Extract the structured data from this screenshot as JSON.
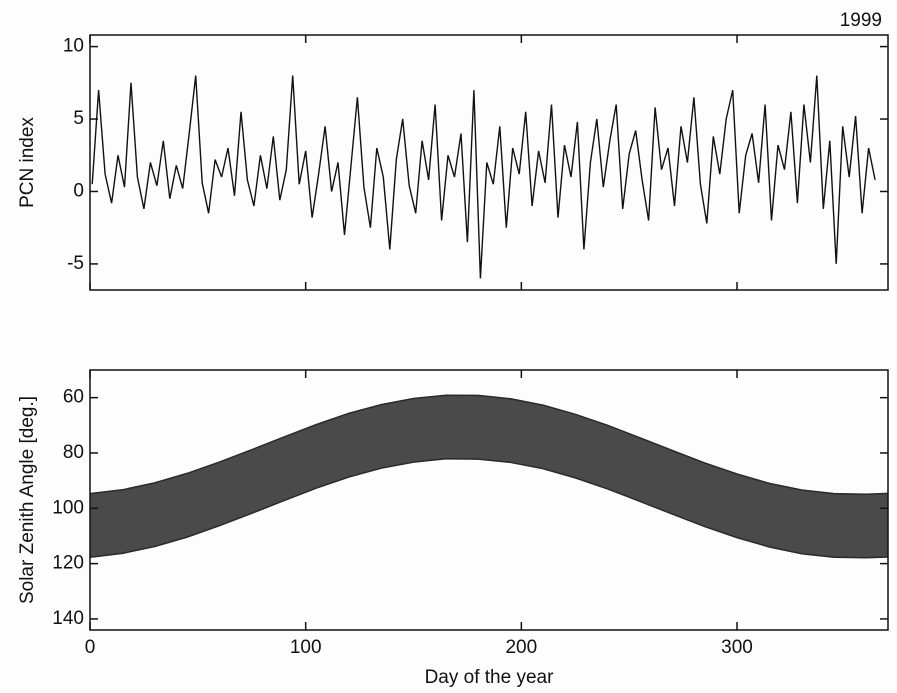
{
  "chart_data": [
    {
      "type": "line",
      "annotation": "1999",
      "y_label": "PCN index",
      "xlim": [
        0,
        370
      ],
      "xticks": [
        0,
        100,
        200,
        300
      ],
      "ylim": [
        -6.8,
        10.8
      ],
      "yticks": [
        -5,
        0,
        5,
        10
      ],
      "x": [
        1,
        4,
        7,
        10,
        13,
        16,
        19,
        22,
        25,
        28,
        31,
        34,
        37,
        40,
        43,
        46,
        49,
        52,
        55,
        58,
        61,
        64,
        67,
        70,
        73,
        76,
        79,
        82,
        85,
        88,
        91,
        94,
        97,
        100,
        103,
        106,
        109,
        112,
        115,
        118,
        121,
        124,
        127,
        130,
        133,
        136,
        139,
        142,
        145,
        148,
        151,
        154,
        157,
        160,
        163,
        166,
        169,
        172,
        175,
        178,
        181,
        184,
        187,
        190,
        193,
        196,
        199,
        202,
        205,
        208,
        211,
        214,
        217,
        220,
        223,
        226,
        229,
        232,
        235,
        238,
        241,
        244,
        247,
        250,
        253,
        256,
        259,
        262,
        265,
        268,
        271,
        274,
        277,
        280,
        283,
        286,
        289,
        292,
        295,
        298,
        301,
        304,
        307,
        310,
        313,
        316,
        319,
        322,
        325,
        328,
        331,
        334,
        337,
        340,
        343,
        346,
        349,
        352,
        355,
        358,
        361,
        364
      ],
      "series": [
        {
          "color": "#111111",
          "values": [
            0.5,
            7.0,
            1.2,
            -0.8,
            2.5,
            0.3,
            7.5,
            1.0,
            -1.2,
            2.0,
            0.4,
            3.5,
            -0.5,
            1.8,
            0.2,
            4.0,
            8.0,
            0.6,
            -1.5,
            2.2,
            1.0,
            3.0,
            -0.3,
            5.5,
            0.8,
            -1.0,
            2.5,
            0.2,
            3.8,
            -0.6,
            1.5,
            8.0,
            0.5,
            2.8,
            -1.8,
            1.2,
            4.5,
            0.0,
            2.0,
            -3.0,
            1.8,
            6.5,
            0.3,
            -2.5,
            3.0,
            1.0,
            -4.0,
            2.2,
            5.0,
            0.4,
            -1.5,
            3.5,
            0.8,
            6.0,
            -2.0,
            2.5,
            1.0,
            4.0,
            -3.5,
            7.0,
            -6.0,
            2.0,
            0.5,
            4.5,
            -2.5,
            3.0,
            1.2,
            5.5,
            -1.0,
            2.8,
            0.6,
            6.0,
            -1.8,
            3.2,
            1.0,
            4.8,
            -4.0,
            2.0,
            5.0,
            0.3,
            3.5,
            6.0,
            -1.2,
            2.6,
            4.2,
            0.8,
            -2.0,
            5.8,
            1.5,
            3.0,
            -1.0,
            4.5,
            2.0,
            6.5,
            0.5,
            -2.2,
            3.8,
            1.2,
            5.0,
            7.0,
            -1.5,
            2.5,
            4.0,
            0.6,
            6.0,
            -2.0,
            3.2,
            1.5,
            5.5,
            -0.8,
            6.0,
            2.0,
            8.0,
            -1.2,
            3.5,
            -5.0,
            4.5,
            1.0,
            5.2,
            -1.5,
            3.0,
            0.8
          ]
        }
      ]
    },
    {
      "type": "band",
      "y_label": "Solar Zenith Angle [deg.]",
      "x_label": "Day of the year",
      "xlim": [
        0,
        370
      ],
      "xticks": [
        0,
        100,
        200,
        300
      ],
      "ylim": [
        50,
        144
      ],
      "y_inverted": true,
      "yticks": [
        60,
        80,
        100,
        120,
        140
      ],
      "x": [
        0,
        15,
        30,
        45,
        60,
        75,
        90,
        105,
        120,
        135,
        150,
        165,
        180,
        195,
        210,
        225,
        240,
        255,
        270,
        285,
        300,
        315,
        330,
        345,
        360,
        370
      ],
      "series": [
        {
          "color": "#2a2a2a",
          "values": [
            94.7,
            93.3,
            90.8,
            87.4,
            83.3,
            78.8,
            74.2,
            69.7,
            65.7,
            62.5,
            60.3,
            59.1,
            59.2,
            60.4,
            62.7,
            66.0,
            70.0,
            74.5,
            79.1,
            83.6,
            87.6,
            91.0,
            93.4,
            94.7,
            94.9,
            94.6
          ]
        },
        {
          "color": "#2a2a2a",
          "values": [
            117.7,
            116.3,
            113.8,
            110.4,
            106.3,
            101.8,
            97.2,
            92.7,
            88.7,
            85.5,
            83.3,
            82.1,
            82.2,
            83.4,
            85.7,
            89.0,
            93.0,
            97.5,
            102.1,
            106.6,
            110.6,
            114.0,
            116.4,
            117.7,
            117.9,
            117.6
          ]
        }
      ]
    }
  ]
}
